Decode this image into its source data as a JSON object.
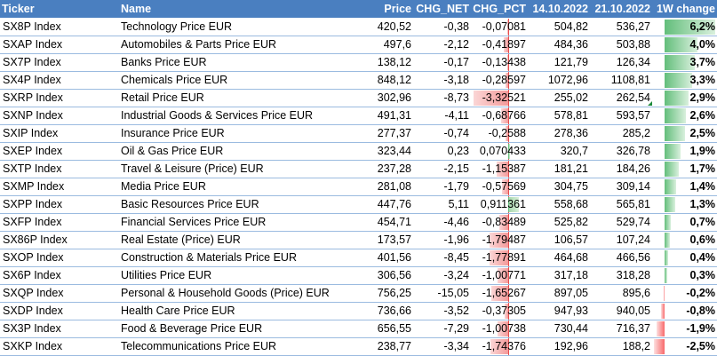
{
  "headers": {
    "ticker": "Ticker",
    "name": "Name",
    "price": "Price",
    "chg_net": "CHG_NET",
    "chg_pct": "CHG_PCT",
    "d1": "14.10.2022",
    "d2": "21.10.2022",
    "w1": "1W change"
  },
  "colors": {
    "header_bg": "#4a7fc0",
    "pos_bar": "#63be7b",
    "neg_bar": "#f8696b"
  },
  "rows": [
    {
      "ticker": "SX8P Index",
      "name": "Technology Price EUR",
      "price": "420,52",
      "chg_net": "-0,38",
      "chg_pct": "-0,07081",
      "chg_pct_val": -0.07081,
      "d1": "504,82",
      "d2": "536,27",
      "w1": "6,2%",
      "w1_val": 6.2
    },
    {
      "ticker": "SXAP Index",
      "name": "Automobiles & Parts Price EUR",
      "price": "497,6",
      "chg_net": "-2,12",
      "chg_pct": "-0,41897",
      "chg_pct_val": -0.41897,
      "d1": "484,36",
      "d2": "503,88",
      "w1": "4,0%",
      "w1_val": 4.0
    },
    {
      "ticker": "SX7P Index",
      "name": "Banks Price EUR",
      "price": "138,12",
      "chg_net": "-0,17",
      "chg_pct": "-0,13438",
      "chg_pct_val": -0.13438,
      "d1": "121,79",
      "d2": "126,34",
      "w1": "3,7%",
      "w1_val": 3.7
    },
    {
      "ticker": "SX4P Index",
      "name": "Chemicals Price EUR",
      "price": "848,12",
      "chg_net": "-3,18",
      "chg_pct": "-0,28597",
      "chg_pct_val": -0.28597,
      "d1": "1072,96",
      "d2": "1108,81",
      "w1": "3,3%",
      "w1_val": 3.3
    },
    {
      "ticker": "SXRP Index",
      "name": "Retail Price EUR",
      "price": "302,96",
      "chg_net": "-8,73",
      "chg_pct": "-3,32521",
      "chg_pct_val": -3.32521,
      "d1": "255,02",
      "d2": "262,54",
      "w1": "2,9%",
      "w1_val": 2.9,
      "flag": true
    },
    {
      "ticker": "SXNP Index",
      "name": "Industrial Goods & Services Price EUR",
      "price": "491,31",
      "chg_net": "-4,11",
      "chg_pct": "-0,68766",
      "chg_pct_val": -0.68766,
      "d1": "578,81",
      "d2": "593,57",
      "w1": "2,6%",
      "w1_val": 2.6
    },
    {
      "ticker": "SXIP Index",
      "name": "Insurance Price EUR",
      "price": "277,37",
      "chg_net": "-0,74",
      "chg_pct": "-0,2588",
      "chg_pct_val": -0.2588,
      "d1": "278,36",
      "d2": "285,2",
      "w1": "2,5%",
      "w1_val": 2.5
    },
    {
      "ticker": "SXEP Index",
      "name": "Oil & Gas Price EUR",
      "price": "323,44",
      "chg_net": "0,23",
      "chg_pct": "0,070433",
      "chg_pct_val": 0.070433,
      "d1": "320,7",
      "d2": "326,78",
      "w1": "1,9%",
      "w1_val": 1.9
    },
    {
      "ticker": "SXTP Index",
      "name": "Travel & Leisure (Price) EUR",
      "price": "237,28",
      "chg_net": "-2,15",
      "chg_pct": "-1,15387",
      "chg_pct_val": -1.15387,
      "d1": "181,21",
      "d2": "184,26",
      "w1": "1,7%",
      "w1_val": 1.7
    },
    {
      "ticker": "SXMP Index",
      "name": "Media Price EUR",
      "price": "281,08",
      "chg_net": "-1,79",
      "chg_pct": "-0,57569",
      "chg_pct_val": -0.57569,
      "d1": "304,75",
      "d2": "309,14",
      "w1": "1,4%",
      "w1_val": 1.4
    },
    {
      "ticker": "SXPP Index",
      "name": "Basic Resources Price EUR",
      "price": "447,76",
      "chg_net": "5,11",
      "chg_pct": "0,911361",
      "chg_pct_val": 0.911361,
      "d1": "558,68",
      "d2": "565,81",
      "w1": "1,3%",
      "w1_val": 1.3
    },
    {
      "ticker": "SXFP Index",
      "name": "Financial Services Price EUR",
      "price": "454,71",
      "chg_net": "-4,46",
      "chg_pct": "-0,83489",
      "chg_pct_val": -0.83489,
      "d1": "525,82",
      "d2": "529,74",
      "w1": "0,7%",
      "w1_val": 0.7
    },
    {
      "ticker": "SX86P Index",
      "name": "Real Estate (Price) EUR",
      "price": "173,57",
      "chg_net": "-1,96",
      "chg_pct": "-1,79487",
      "chg_pct_val": -1.79487,
      "d1": "106,57",
      "d2": "107,24",
      "w1": "0,6%",
      "w1_val": 0.6
    },
    {
      "ticker": "SXOP Index",
      "name": "Construction & Materials Price EUR",
      "price": "401,56",
      "chg_net": "-8,45",
      "chg_pct": "-1,77891",
      "chg_pct_val": -1.77891,
      "d1": "464,68",
      "d2": "466,56",
      "w1": "0,4%",
      "w1_val": 0.4
    },
    {
      "ticker": "SX6P Index",
      "name": "Utilities Price EUR",
      "price": "306,56",
      "chg_net": "-3,24",
      "chg_pct": "-1,00771",
      "chg_pct_val": -1.00771,
      "d1": "317,18",
      "d2": "318,28",
      "w1": "0,3%",
      "w1_val": 0.3
    },
    {
      "ticker": "SXQP Index",
      "name": "Personal & Household Goods (Price) EUR",
      "price": "756,25",
      "chg_net": "-15,05",
      "chg_pct": "-1,65267",
      "chg_pct_val": -1.65267,
      "d1": "897,05",
      "d2": "895,6",
      "w1": "-0,2%",
      "w1_val": -0.2
    },
    {
      "ticker": "SXDP Index",
      "name": "Health Care Price EUR",
      "price": "736,66",
      "chg_net": "-3,52",
      "chg_pct": "-0,37305",
      "chg_pct_val": -0.37305,
      "d1": "947,93",
      "d2": "940,05",
      "w1": "-0,8%",
      "w1_val": -0.8
    },
    {
      "ticker": "SX3P Index",
      "name": "Food & Beverage Price EUR",
      "price": "656,55",
      "chg_net": "-7,29",
      "chg_pct": "-1,00738",
      "chg_pct_val": -1.00738,
      "d1": "730,44",
      "d2": "716,37",
      "w1": "-1,9%",
      "w1_val": -1.9
    },
    {
      "ticker": "SXKP Index",
      "name": "Telecommunications Price EUR",
      "price": "238,77",
      "chg_net": "-3,34",
      "chg_pct": "-1,74376",
      "chg_pct_val": -1.74376,
      "d1": "192,96",
      "d2": "188,2",
      "w1": "-2,5%",
      "w1_val": -2.5
    }
  ]
}
